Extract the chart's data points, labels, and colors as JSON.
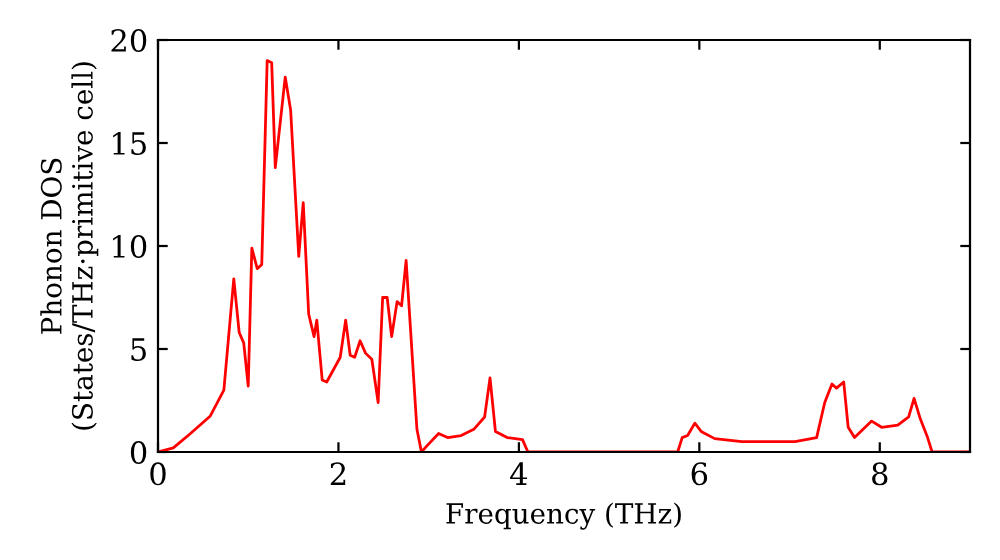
{
  "chart_data": {
    "type": "line",
    "xlabel": "Frequency (THz)",
    "ylabel": "Phonon DOS\n(States/THz·primitive cell)",
    "series": [
      {
        "color": "#ff0000",
        "x": [
          0,
          0.17,
          0.36,
          0.58,
          0.73,
          0.84,
          0.9,
          0.95,
          1.0,
          1.04,
          1.1,
          1.15,
          1.21,
          1.26,
          1.3,
          1.41,
          1.47,
          1.56,
          1.61,
          1.67,
          1.73,
          1.76,
          1.82,
          1.87,
          2.02,
          2.08,
          2.13,
          2.18,
          2.24,
          2.3,
          2.37,
          2.44,
          2.49,
          2.54,
          2.59,
          2.65,
          2.7,
          2.75,
          2.87,
          2.92,
          2.96,
          3.11,
          3.21,
          3.36,
          3.5,
          3.62,
          3.68,
          3.74,
          3.87,
          4.04,
          4.1,
          5.76,
          5.81,
          5.87,
          5.95,
          6.02,
          6.17,
          6.47,
          7.06,
          7.3,
          7.39,
          7.47,
          7.52,
          7.6,
          7.65,
          7.72,
          7.91,
          8.02,
          8.2,
          8.32,
          8.38,
          8.45,
          8.53,
          8.58,
          9
        ],
        "values": [
          0,
          0.2,
          0.9,
          1.75,
          3.0,
          8.4,
          5.8,
          5.3,
          3.2,
          9.9,
          8.9,
          9.1,
          19.0,
          18.9,
          13.8,
          18.2,
          16.6,
          9.5,
          12.1,
          6.7,
          5.6,
          6.4,
          3.5,
          3.4,
          4.6,
          6.4,
          4.7,
          4.6,
          5.4,
          4.8,
          4.5,
          2.4,
          7.5,
          7.5,
          5.6,
          7.3,
          7.1,
          9.3,
          1.1,
          0,
          0.2,
          0.9,
          0.7,
          0.8,
          1.1,
          1.7,
          3.6,
          1.0,
          0.7,
          0.6,
          0,
          0,
          0.7,
          0.8,
          1.4,
          1.0,
          0.65,
          0.5,
          0.5,
          0.7,
          2.4,
          3.3,
          3.1,
          3.4,
          1.2,
          0.7,
          1.5,
          1.2,
          1.3,
          1.7,
          2.6,
          1.6,
          0.7,
          0,
          0
        ]
      }
    ],
    "xlim": [
      0,
      9
    ],
    "ylim": [
      0,
      20
    ],
    "xticks": [
      0,
      2,
      4,
      6,
      8
    ],
    "yticks": [
      0,
      5,
      10,
      15,
      20
    ],
    "grid": false,
    "legend": false,
    "marker": "none",
    "line_style": "solid"
  }
}
